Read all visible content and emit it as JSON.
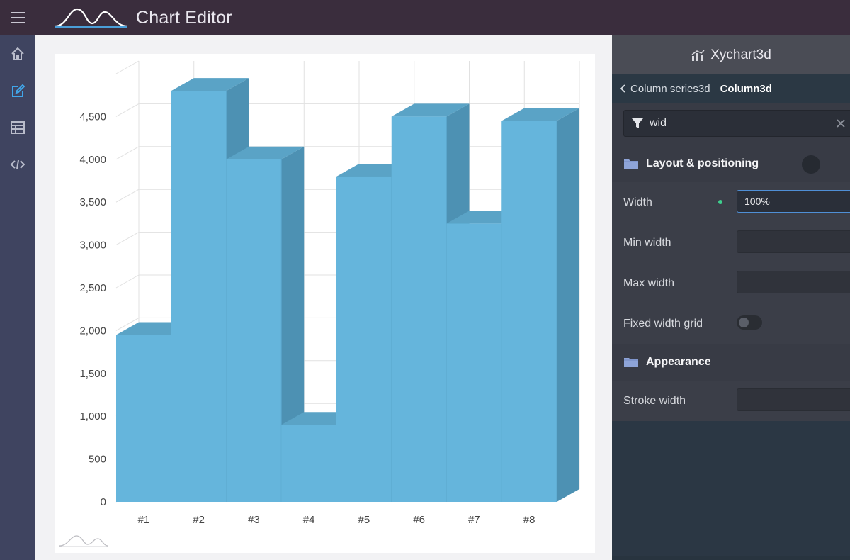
{
  "app": {
    "title": "Chart Editor"
  },
  "sidebar": {
    "items": [
      {
        "icon": "home-icon",
        "label": "Home"
      },
      {
        "icon": "edit-icon",
        "label": "Edit"
      },
      {
        "icon": "table-icon",
        "label": "Data"
      },
      {
        "icon": "code-icon",
        "label": "Code"
      }
    ]
  },
  "panel": {
    "title": "Xychart3d",
    "breadcrumb": {
      "parent": "Column series3d",
      "current": "Column3d"
    },
    "filter": {
      "value": "wid"
    },
    "sections": {
      "layout": {
        "title": "Layout & positioning",
        "width_label": "Width",
        "width_value": "100%",
        "min_width_label": "Min width",
        "max_width_label": "Max width",
        "fixed_width_grid_label": "Fixed width grid",
        "fixed_width_grid_on": false
      },
      "appearance": {
        "title": "Appearance",
        "stroke_width_label": "Stroke width"
      }
    }
  },
  "colors": {
    "bar_front": "#65b5dc",
    "bar_side": "#4d91b3",
    "bar_top": "#5aa3c6",
    "grid": "#e1e1e1"
  },
  "chart_data": {
    "type": "bar",
    "categories": [
      "#1",
      "#2",
      "#3",
      "#4",
      "#5",
      "#6",
      "#7",
      "#8"
    ],
    "values": [
      1950,
      4800,
      4000,
      900,
      3800,
      4500,
      3250,
      4450
    ],
    "ylim": [
      0,
      5000
    ],
    "ticks": [
      0,
      500,
      1000,
      1500,
      2000,
      2500,
      3000,
      3500,
      4000,
      4500
    ],
    "tick_labels": [
      "0",
      "500",
      "1,000",
      "1,500",
      "2,000",
      "2,500",
      "3,000",
      "3,500",
      "4,000",
      "4,500"
    ],
    "title": "",
    "xlabel": "",
    "ylabel": "",
    "grid": true,
    "style": "3d-columns"
  }
}
